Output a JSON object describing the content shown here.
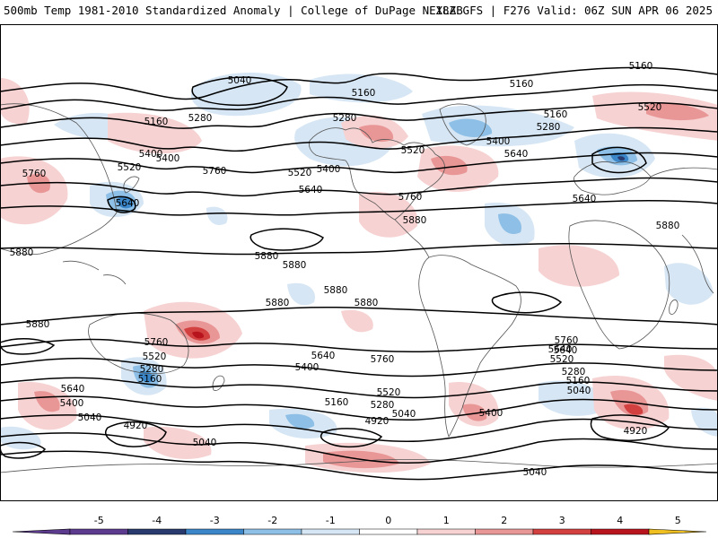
{
  "header": {
    "title_left": "500mb Temp 1981-2010 Standardized Anomaly | College of DuPage NEXLAB",
    "title_right": "18Z GFS | F276 Valid: 06Z SUN APR 06 2025"
  },
  "colors": {
    "c_n5": "#5c3a8e",
    "c_n4": "#283a6e",
    "c_n3": "#3a86c8",
    "c_n2": "#8ebfe6",
    "c_n1": "#d6e6f4",
    "c_0": "#ffffff",
    "c_p1": "#f6d2d2",
    "c_p2": "#e99696",
    "c_p3": "#d24040",
    "c_p4": "#b8141e",
    "c_p5": "#7a0010",
    "c_over": "#f0c020",
    "contour": "#000000",
    "coast": "#555555"
  },
  "colorbar": {
    "ticks": [
      "-5",
      "-4",
      "-3",
      "-2",
      "-1",
      "0",
      "1",
      "2",
      "3",
      "4",
      "5"
    ]
  },
  "contour_labels": {
    "l1": "5040",
    "l2": "5160",
    "l3": "5160",
    "l4": "5160",
    "l5": "5160",
    "l6": "5160",
    "l7": "5280",
    "l8": "5280",
    "l9": "5280",
    "l10": "5520",
    "l11": "5400",
    "l12": "5520",
    "l13": "5400",
    "l14": "5400",
    "l15": "5640",
    "l16": "5520",
    "l17": "5760",
    "l18": "5760",
    "l19": "5640",
    "l20": "5760",
    "l21": "5640",
    "l22": "5640",
    "l23": "5880",
    "l24": "5880",
    "l25": "5880",
    "l26": "5880",
    "l27": "5880",
    "l28": "5880",
    "l29": "5880",
    "l30": "5880",
    "l31": "5880",
    "l32": "5760",
    "l33": "5640",
    "l34": "5520",
    "l35": "5280",
    "l36": "5160",
    "l37": "5640",
    "l38": "5400",
    "l39": "5040",
    "l40": "4920",
    "l41": "5040",
    "l42": "5400",
    "l43": "5640",
    "l44": "5760",
    "l45": "5160",
    "l46": "5280",
    "l47": "5520",
    "l48": "5040",
    "l49": "4920",
    "l50": "5400",
    "l51": "5760",
    "l52": "5640",
    "l53": "5520",
    "l54": "5280",
    "l55": "5160",
    "l56": "5040",
    "l57": "4920",
    "l58": "5040",
    "l59": "5400",
    "l60": "5520"
  }
}
